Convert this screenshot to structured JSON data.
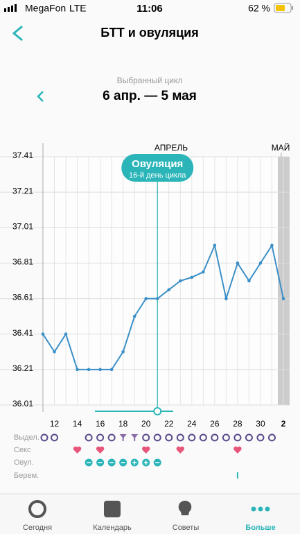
{
  "status_bar": {
    "carrier": "MegaFon",
    "network": "LTE",
    "time": "11:06",
    "battery": "62 %"
  },
  "header": {
    "title": "БТТ и овуляция"
  },
  "cycle": {
    "label": "Выбранный цикл",
    "range": "6 апр. — 5 мая"
  },
  "chart_data": {
    "type": "line",
    "color": "#3b8fc8",
    "categories": [
      null,
      "12",
      null,
      "14",
      null,
      "16",
      null,
      "18",
      null,
      "20",
      null,
      "22",
      null,
      "24",
      null,
      "26",
      null,
      "28",
      null,
      "30",
      null,
      "2"
    ],
    "values": [
      36.41,
      36.31,
      36.41,
      36.21,
      36.21,
      36.21,
      36.21,
      36.31,
      36.51,
      36.61,
      36.61,
      36.66,
      36.71,
      36.73,
      36.76,
      36.91,
      36.61,
      36.81,
      36.71,
      36.81,
      36.91,
      36.61
    ],
    "ylim": [
      36.01,
      37.41
    ],
    "yticks": [
      36.01,
      36.21,
      36.41,
      36.61,
      36.81,
      37.01,
      37.21,
      37.41
    ],
    "grid": true,
    "month_labels": [
      "АПРЕЛЬ",
      "МАЙ"
    ],
    "annotation": {
      "title": "Овуляция",
      "subtitle": "16-й день цикла"
    }
  },
  "rows": {
    "labels": [
      "Выдел.",
      "Секс",
      "Овул.",
      "Берем."
    ]
  },
  "tabs": [
    "Сегодня",
    "Календарь",
    "Советы",
    "Больше"
  ]
}
